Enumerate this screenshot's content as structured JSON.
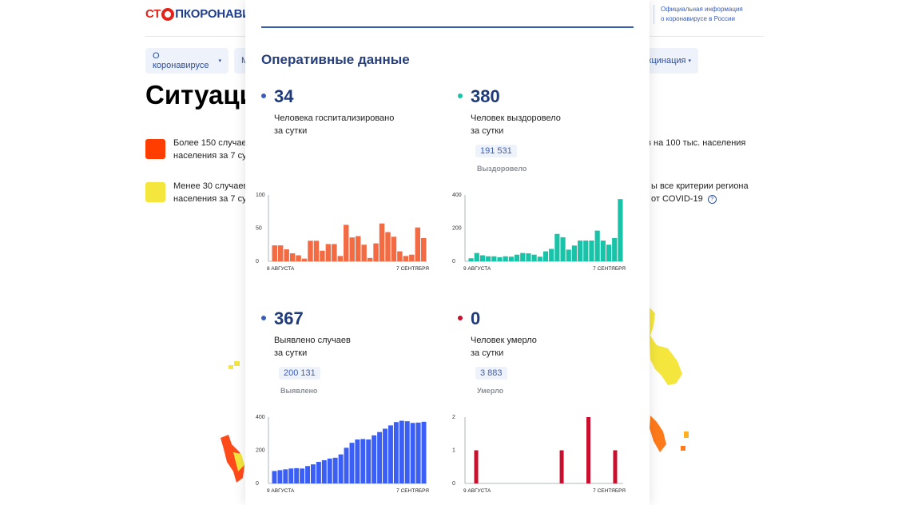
{
  "header": {
    "logo_left": "СТ",
    "logo_right": "ПКОРОНАВИ",
    "official_line1": "Официальная информация",
    "official_line2": "о коронавирусе в России"
  },
  "nav": {
    "about": "О коронавирусе",
    "m": "М",
    "vaccination": "кцинация"
  },
  "page": {
    "title": "Ситуаци",
    "legend_high_line1": "Более 150 случаев",
    "legend_high_line2": "населения за 7 сут",
    "legend_high_right": "ев на 100 тыс. населения",
    "legend_low_line1": "Менее 30 случаев",
    "legend_low_line2": "населения за 7 сут",
    "legend_low_right1": "ы все критерии региона",
    "legend_low_right2": "от COVID-19",
    "colors": {
      "high": "#ff3d00",
      "low": "#f5e63d"
    }
  },
  "modal": {
    "title": "Оперативные данные",
    "stats": [
      {
        "id": "hospitalized",
        "value": "34",
        "desc1": "Человека госпитализировано",
        "desc2": "за сутки",
        "total": "",
        "total_label": "",
        "dot_color": "#3a5eb8"
      },
      {
        "id": "recovered",
        "value": "380",
        "desc1": "Человек выздоровело",
        "desc2": "за сутки",
        "total": "191 531",
        "total_label": "Выздоровело",
        "dot_color": "#18c3a8"
      },
      {
        "id": "cases",
        "value": "367",
        "desc1": "Выявлено случаев",
        "desc2": "за сутки",
        "total": "200 131",
        "total_label": "Выявлено",
        "dot_color": "#3a5eb8"
      },
      {
        "id": "deaths",
        "value": "0",
        "desc1": "Человек умерло",
        "desc2": "за сутки",
        "total": "3 883",
        "total_label": "Умерло",
        "dot_color": "#c8102e"
      }
    ]
  },
  "chart_data": [
    {
      "id": "hospitalized",
      "type": "bar",
      "color": "#f26b43",
      "x_start_label": "8 АВГУСТА",
      "x_end_label": "7 СЕНТЯБРЯ",
      "ylim": [
        0,
        100
      ],
      "yticks": [
        "100",
        "50",
        "0"
      ],
      "values": [
        24,
        24,
        18,
        12,
        9,
        4,
        31,
        31,
        16,
        26,
        26,
        8,
        55,
        36,
        38,
        25,
        5,
        27,
        57,
        44,
        37,
        15,
        8,
        10,
        51,
        35
      ]
    },
    {
      "id": "recovered",
      "type": "bar",
      "color": "#18c3a8",
      "x_start_label": "9 АВГУСТА",
      "x_end_label": "7 СЕНТЯБРЯ",
      "ylim": [
        0,
        400
      ],
      "yticks": [
        "400",
        "200",
        "0"
      ],
      "values": [
        18,
        50,
        36,
        30,
        30,
        25,
        30,
        28,
        40,
        50,
        48,
        40,
        28,
        60,
        75,
        165,
        145,
        70,
        95,
        125,
        125,
        125,
        185,
        125,
        100,
        140,
        375
      ]
    },
    {
      "id": "cases",
      "type": "bar",
      "color": "#3b5ff5",
      "x_start_label": "9 АВГУСТА",
      "x_end_label": "7 СЕНТЯБРЯ",
      "ylim": [
        0,
        400
      ],
      "yticks": [
        "400",
        "200",
        "0"
      ],
      "values": [
        75,
        80,
        85,
        90,
        92,
        90,
        105,
        115,
        130,
        140,
        150,
        155,
        175,
        215,
        245,
        265,
        268,
        265,
        290,
        310,
        330,
        350,
        370,
        378,
        375,
        365,
        367,
        372
      ]
    },
    {
      "id": "deaths",
      "type": "bar",
      "color": "#c8102e",
      "x_start_label": "9 АВГУСТА",
      "x_end_label": "7 СЕНТЯБРЯ",
      "ylim": [
        0,
        2
      ],
      "yticks": [
        "2",
        "1",
        "0"
      ],
      "values": [
        0,
        1,
        0,
        0,
        0,
        0,
        0,
        0,
        0,
        0,
        0,
        0,
        0,
        0,
        0,
        0,
        0,
        1,
        0,
        0,
        0,
        0,
        2,
        0,
        0,
        0,
        0,
        1,
        0
      ]
    }
  ]
}
